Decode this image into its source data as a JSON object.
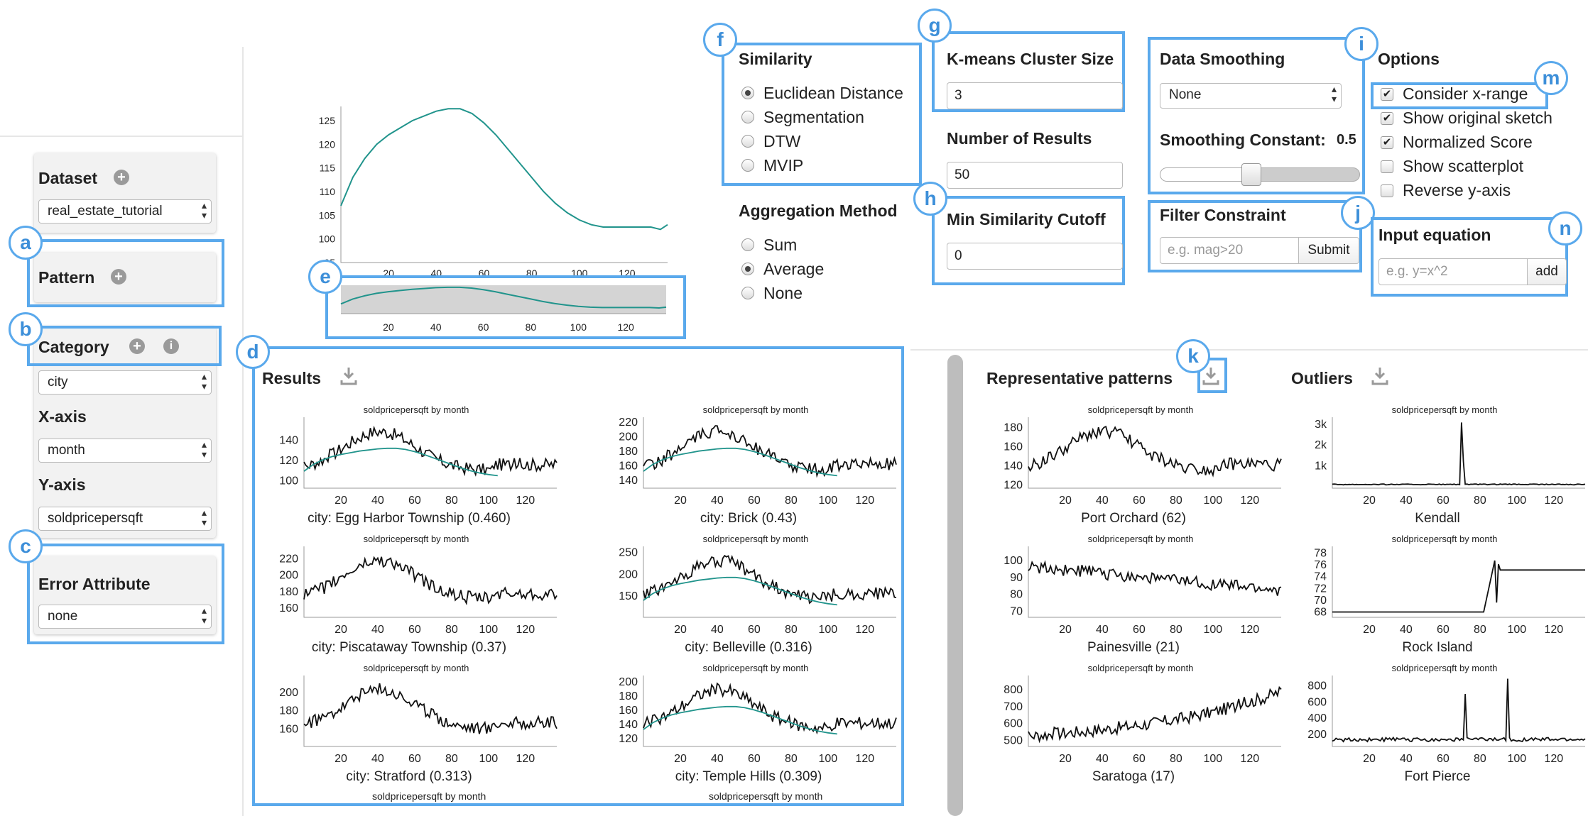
{
  "sidebar": {
    "dataset_label": "Dataset",
    "dataset_value": "real_estate_tutorial",
    "pattern_label": "Pattern",
    "category_label": "Category",
    "category_value": "city",
    "xaxis_label": "X-axis",
    "xaxis_value": "month",
    "yaxis_label": "Y-axis",
    "yaxis_value": "soldpricepersqft",
    "error_label": "Error Attribute",
    "error_value": "none"
  },
  "badges": [
    "a",
    "b",
    "c",
    "d",
    "e",
    "f",
    "g",
    "h",
    "i",
    "j",
    "k",
    "m",
    "n"
  ],
  "similarity": {
    "title": "Similarity",
    "options": [
      "Euclidean Distance",
      "Segmentation",
      "DTW",
      "MVIP"
    ],
    "selected": 0
  },
  "aggregation": {
    "title": "Aggregation Method",
    "options": [
      "Sum",
      "Average",
      "None"
    ],
    "selected": 1
  },
  "kmeans": {
    "title": "K-means Cluster Size",
    "value": "3"
  },
  "num_results": {
    "title": "Number of Results",
    "value": "50"
  },
  "min_sim": {
    "title": "Min Similarity Cutoff",
    "value": "0"
  },
  "smoothing": {
    "title": "Data Smoothing",
    "value": "None",
    "constant_label": "Smoothing Constant:",
    "constant_value": "0.5",
    "slider_fraction": 0.5
  },
  "filter": {
    "title": "Filter Constraint",
    "placeholder": "e.g. mag>20",
    "submit": "Submit"
  },
  "options": {
    "title": "Options",
    "items": [
      {
        "label": "Consider x-range",
        "checked": true
      },
      {
        "label": "Show original sketch",
        "checked": true
      },
      {
        "label": "Normalized Score",
        "checked": true
      },
      {
        "label": "Show scatterplot",
        "checked": false
      },
      {
        "label": "Reverse y-axis",
        "checked": false
      }
    ]
  },
  "equation": {
    "title": "Input equation",
    "placeholder": "e.g. y=x^2",
    "add": "add"
  },
  "results_title": "Representative patterns",
  "results_label": "Results",
  "outliers_label": "Outliers",
  "chart_data": [
    {
      "type": "line",
      "id": "sketch",
      "xticks": [
        20,
        40,
        60,
        80,
        100,
        120
      ],
      "yticks": [
        95,
        100,
        105,
        110,
        115,
        120,
        125
      ],
      "xlim": [
        0,
        137
      ],
      "ylim": [
        95,
        128
      ],
      "series": [
        {
          "values": [
            [
              0,
              107
            ],
            [
              5,
              113
            ],
            [
              10,
              117
            ],
            [
              15,
              120
            ],
            [
              20,
              122
            ],
            [
              25,
              123.5
            ],
            [
              30,
              125
            ],
            [
              35,
              126
            ],
            [
              40,
              127
            ],
            [
              45,
              127.5
            ],
            [
              50,
              127.5
            ],
            [
              55,
              126.5
            ],
            [
              60,
              124.5
            ],
            [
              65,
              122
            ],
            [
              70,
              119
            ],
            [
              75,
              116
            ],
            [
              80,
              113
            ],
            [
              85,
              110
            ],
            [
              90,
              107.5
            ],
            [
              95,
              105.5
            ],
            [
              100,
              104
            ],
            [
              105,
              103
            ],
            [
              110,
              102.5
            ],
            [
              120,
              102.5
            ],
            [
              130,
              102.5
            ],
            [
              134,
              102
            ],
            [
              137,
              103
            ]
          ]
        }
      ]
    },
    {
      "type": "line",
      "id": "overview",
      "xticks": [
        20,
        40,
        60,
        80,
        100,
        120
      ],
      "xlim": [
        0,
        137
      ],
      "ylim": [
        95,
        128
      ]
    },
    {
      "type": "line",
      "id": "r1",
      "title": "soldpricepersqft by month",
      "caption": "city: Egg Harbor Township (0.460)",
      "yticks": [
        100,
        120,
        140
      ],
      "ylim": [
        92,
        162
      ],
      "xticks": [
        20,
        40,
        60,
        80,
        100,
        120
      ],
      "xlim": [
        0,
        137
      ]
    },
    {
      "type": "line",
      "id": "r2",
      "title": "soldpricepersqft by month",
      "caption": "city: Brick (0.43)",
      "yticks": [
        140,
        160,
        180,
        200,
        220
      ],
      "ylim": [
        128,
        226
      ],
      "xticks": [
        20,
        40,
        60,
        80,
        100,
        120
      ],
      "xlim": [
        0,
        137
      ]
    },
    {
      "type": "line",
      "id": "r3",
      "title": "soldpricepersqft by month",
      "caption": "city: Piscataway Township (0.37)",
      "yticks": [
        160,
        180,
        200,
        220
      ],
      "ylim": [
        148,
        234
      ],
      "xticks": [
        20,
        40,
        60,
        80,
        100,
        120
      ],
      "xlim": [
        0,
        137
      ]
    },
    {
      "type": "line",
      "id": "r4",
      "title": "soldpricepersqft by month",
      "caption": "city: Belleville (0.316)",
      "yticks": [
        150,
        200,
        250
      ],
      "ylim": [
        100,
        262
      ],
      "xticks": [
        20,
        40,
        60,
        80,
        100,
        120
      ],
      "xlim": [
        0,
        137
      ]
    },
    {
      "type": "line",
      "id": "r5",
      "title": "soldpricepersqft by month",
      "caption": "city: Stratford (0.313)",
      "yticks": [
        160,
        180,
        200
      ],
      "ylim": [
        140,
        218
      ],
      "xticks": [
        20,
        40,
        60,
        80,
        100,
        120
      ],
      "xlim": [
        0,
        137
      ]
    },
    {
      "type": "line",
      "id": "r6",
      "title": "soldpricepersqft by month",
      "caption": "city: Temple Hills (0.309)",
      "yticks": [
        120,
        140,
        160,
        180,
        200
      ],
      "ylim": [
        108,
        208
      ],
      "xticks": [
        20,
        40,
        60,
        80,
        100,
        120
      ],
      "xlim": [
        0,
        137
      ]
    },
    {
      "type": "line",
      "id": "p1",
      "title": "soldpricepersqft by month",
      "caption": "Port Orchard (62)",
      "yticks": [
        120,
        140,
        160,
        180
      ],
      "ylim": [
        116,
        190
      ],
      "xticks": [
        20,
        40,
        60,
        80,
        100,
        120
      ],
      "xlim": [
        0,
        137
      ]
    },
    {
      "type": "line",
      "id": "p2",
      "title": "soldpricepersqft by month",
      "caption": "Painesville (21)",
      "yticks": [
        70,
        80,
        90,
        100
      ],
      "ylim": [
        66,
        108
      ],
      "xticks": [
        20,
        40,
        60,
        80,
        100,
        120
      ],
      "xlim": [
        0,
        137
      ]
    },
    {
      "type": "line",
      "id": "p3",
      "title": "soldpricepersqft by month",
      "caption": "Saratoga (17)",
      "yticks": [
        500,
        600,
        700,
        800
      ],
      "ylim": [
        460,
        880
      ],
      "xticks": [
        20,
        40,
        60,
        80,
        100,
        120
      ],
      "xlim": [
        0,
        137
      ]
    },
    {
      "type": "line",
      "id": "o1",
      "title": "soldpricepersqft by month",
      "caption": "Kendall",
      "yticks": [
        "1k",
        "2k",
        "3k"
      ],
      "ytickvals": [
        1000,
        2000,
        3000
      ],
      "ylim": [
        -100,
        3300
      ],
      "xticks": [
        20,
        40,
        60,
        80,
        100,
        120
      ],
      "xlim": [
        0,
        137
      ]
    },
    {
      "type": "line",
      "id": "o2",
      "title": "soldpricepersqft by month",
      "caption": "Rock Island",
      "yticks": [
        68,
        70,
        72,
        74,
        76,
        78
      ],
      "ylim": [
        67,
        79
      ],
      "xticks": [
        20,
        40,
        60,
        80,
        100,
        120
      ],
      "xlim": [
        0,
        137
      ]
    },
    {
      "type": "line",
      "id": "o3",
      "title": "soldpricepersqft by month",
      "caption": "Fort Pierce",
      "yticks": [
        200,
        400,
        600,
        800
      ],
      "ylim": [
        40,
        920
      ],
      "xticks": [
        20,
        40,
        60,
        80,
        100,
        120
      ],
      "xlim": [
        0,
        137
      ]
    }
  ],
  "bottom_partial_title": "soldpricepersqft by month"
}
